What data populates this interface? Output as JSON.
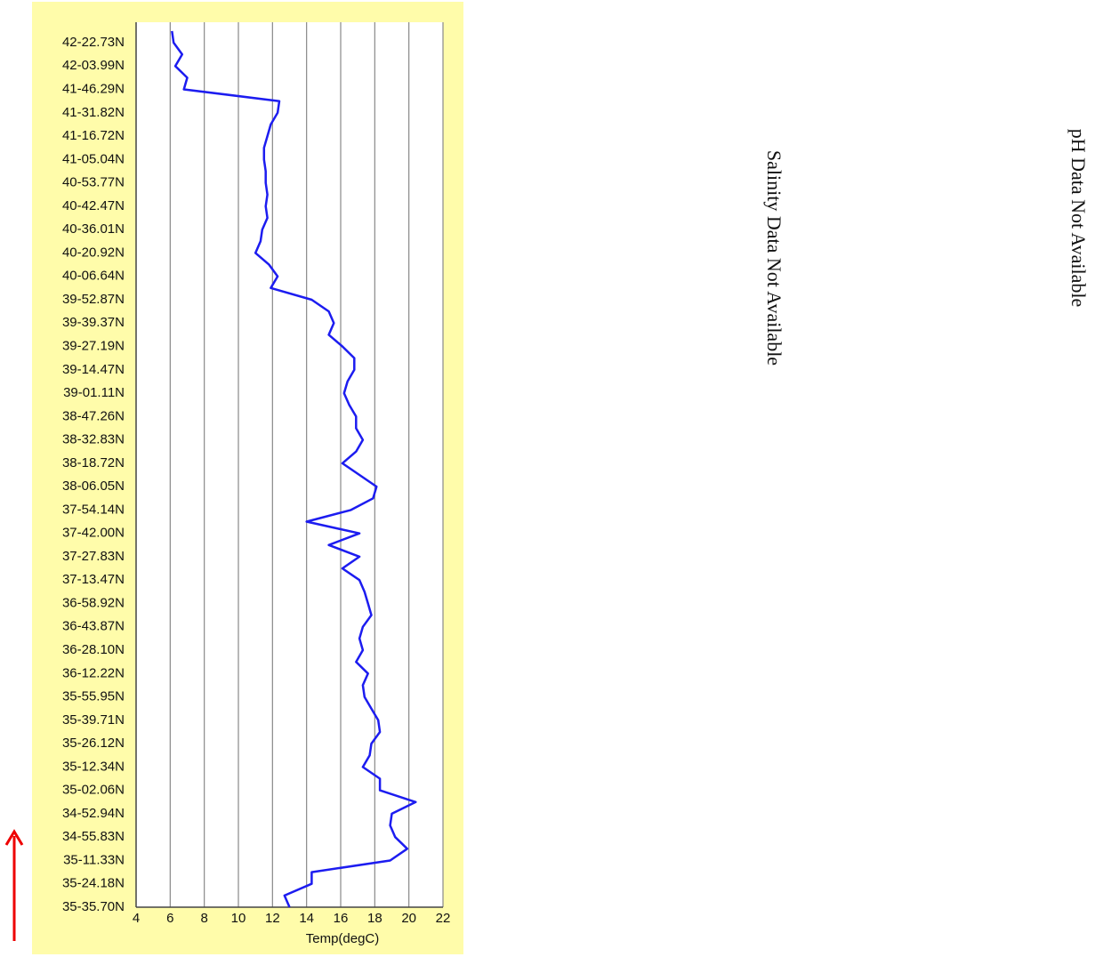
{
  "chart_data": {
    "type": "line",
    "x_label": "Temp(degC)",
    "color": "#1c1cf0",
    "categories": [
      null,
      "42-22.73N",
      null,
      "42-03.99N",
      null,
      "41-46.29N",
      null,
      "41-31.82N",
      null,
      "41-16.72N",
      null,
      "41-05.04N",
      null,
      "40-53.77N",
      null,
      "40-42.47N",
      null,
      "40-36.01N",
      null,
      "40-20.92N",
      null,
      "40-06.64N",
      null,
      "39-52.87N",
      null,
      "39-39.37N",
      null,
      "39-27.19N",
      null,
      "39-14.47N",
      null,
      "39-01.11N",
      null,
      "38-47.26N",
      null,
      "38-32.83N",
      null,
      "38-18.72N",
      null,
      "38-06.05N",
      null,
      "37-54.14N",
      null,
      "37-42.00N",
      null,
      "37-27.83N",
      null,
      "37-13.47N",
      null,
      "36-58.92N",
      null,
      "36-43.87N",
      null,
      "36-28.10N",
      null,
      "36-12.22N",
      null,
      "35-55.95N",
      null,
      "35-39.71N",
      null,
      "35-26.12N",
      null,
      "35-12.34N",
      null,
      "35-02.06N",
      null,
      "34-52.94N",
      null,
      "34-55.83N",
      null,
      "35-11.33N",
      null,
      "35-24.18N",
      null,
      "35-35.70N"
    ],
    "values": [
      6.1,
      6.2,
      6.7,
      6.3,
      7.0,
      6.8,
      12.4,
      12.3,
      11.9,
      11.7,
      11.5,
      11.5,
      11.6,
      11.6,
      11.7,
      11.6,
      11.7,
      11.4,
      11.3,
      11.0,
      11.8,
      12.3,
      11.9,
      14.3,
      15.3,
      15.6,
      15.3,
      16.1,
      16.8,
      16.8,
      16.4,
      16.2,
      16.5,
      16.9,
      16.9,
      17.3,
      16.9,
      16.1,
      17.1,
      18.1,
      17.9,
      16.6,
      14.0,
      17.1,
      15.3,
      17.1,
      16.1,
      17.1,
      17.4,
      17.6,
      17.8,
      17.3,
      17.1,
      17.3,
      16.9,
      17.6,
      17.3,
      17.4,
      17.8,
      18.2,
      18.3,
      17.8,
      17.7,
      17.3,
      18.3,
      18.3,
      20.4,
      19.0,
      18.9,
      19.2,
      19.9,
      18.9,
      14.3,
      14.3,
      12.7,
      13.0
    ],
    "xlim": [
      4,
      22
    ],
    "xticks": [
      4,
      6,
      8,
      10,
      12,
      14,
      16,
      18,
      20,
      22
    ],
    "grid": true,
    "annotations": [
      "Salinity Data Not Available",
      "pH Data Not Available"
    ]
  }
}
